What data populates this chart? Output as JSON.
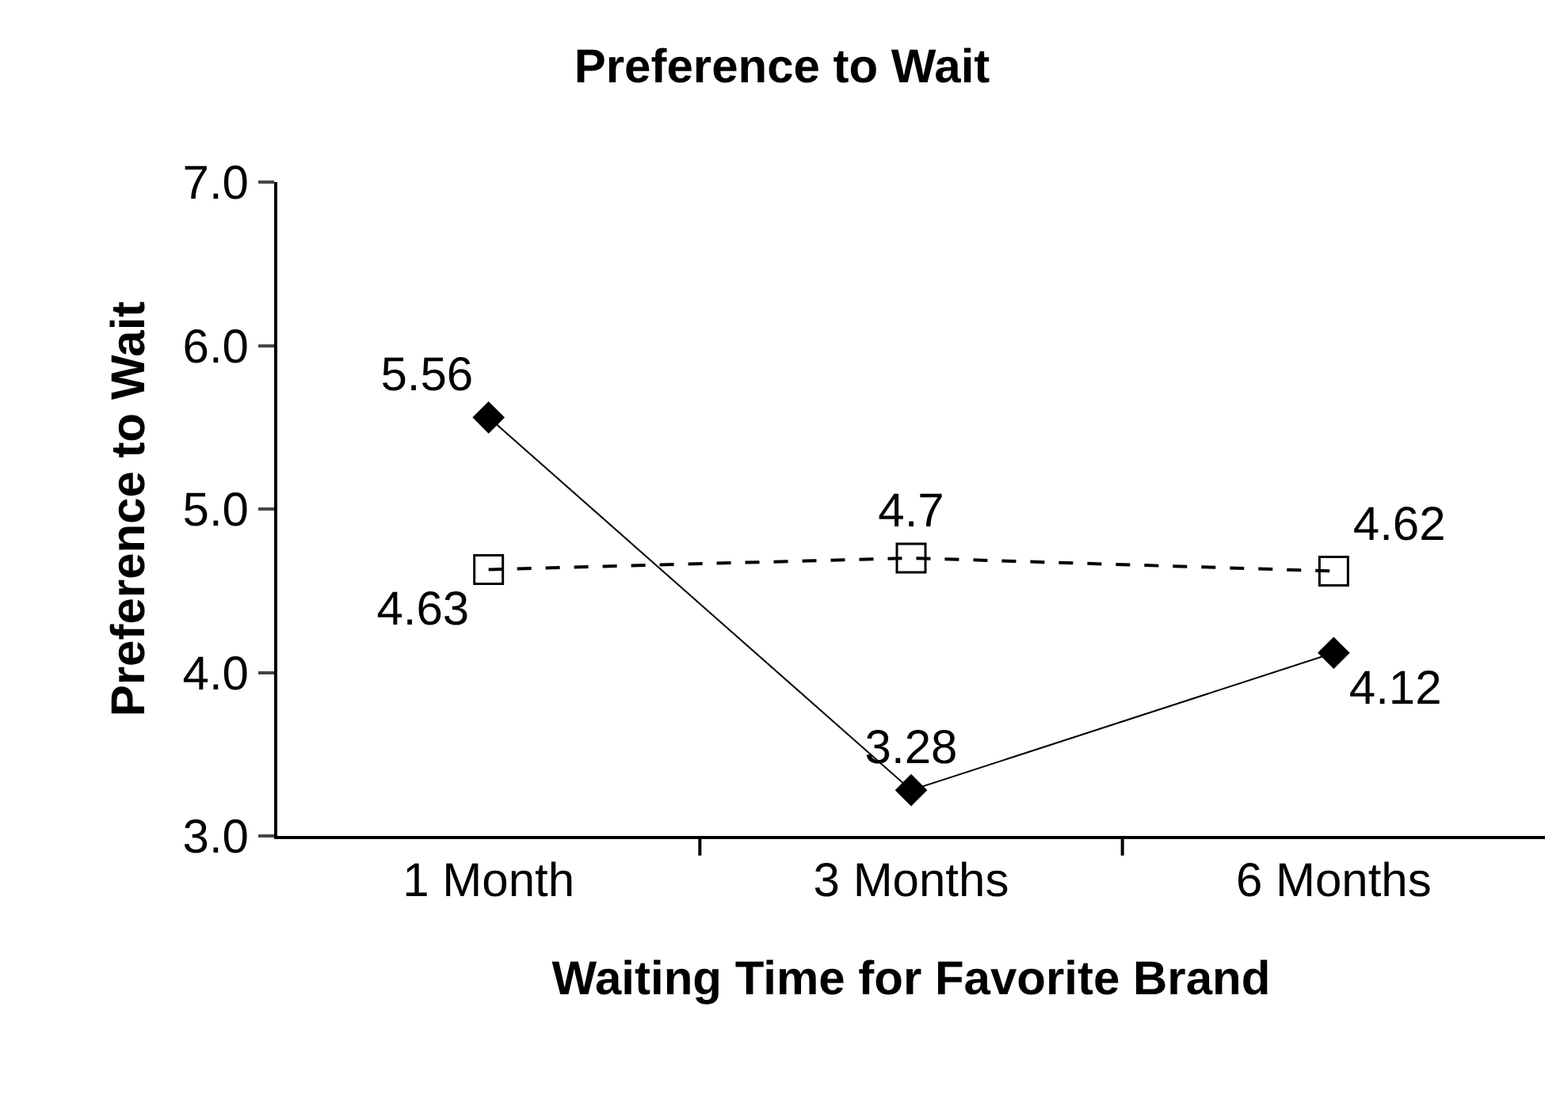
{
  "chart_data": {
    "type": "line",
    "title": "Preference to Wait",
    "xlabel": "Waiting Time for Favorite Brand",
    "ylabel": "Preference to Wait",
    "categories": [
      "1 Month",
      "3 Months",
      "6 Months"
    ],
    "series": [
      {
        "color": "#000000",
        "values": [
          5.56,
          3.28,
          4.12
        ],
        "value_labels": [
          "5.56",
          "3.28",
          "4.12"
        ],
        "marker": "diamond",
        "line_style": "solid"
      },
      {
        "color": "#000000",
        "values": [
          4.63,
          4.7,
          4.62
        ],
        "value_labels": [
          "4.63",
          "4.7",
          "4.62"
        ],
        "marker": "square",
        "line_style": "dashed"
      }
    ],
    "ylim": [
      3,
      7
    ],
    "yticks": [
      {
        "value": 3,
        "label": "3.0"
      },
      {
        "value": 4,
        "label": "4.0"
      },
      {
        "value": 5,
        "label": "5.0"
      },
      {
        "value": 6,
        "label": "6.0"
      },
      {
        "value": 7,
        "label": "7.0"
      }
    ],
    "legend": false
  }
}
